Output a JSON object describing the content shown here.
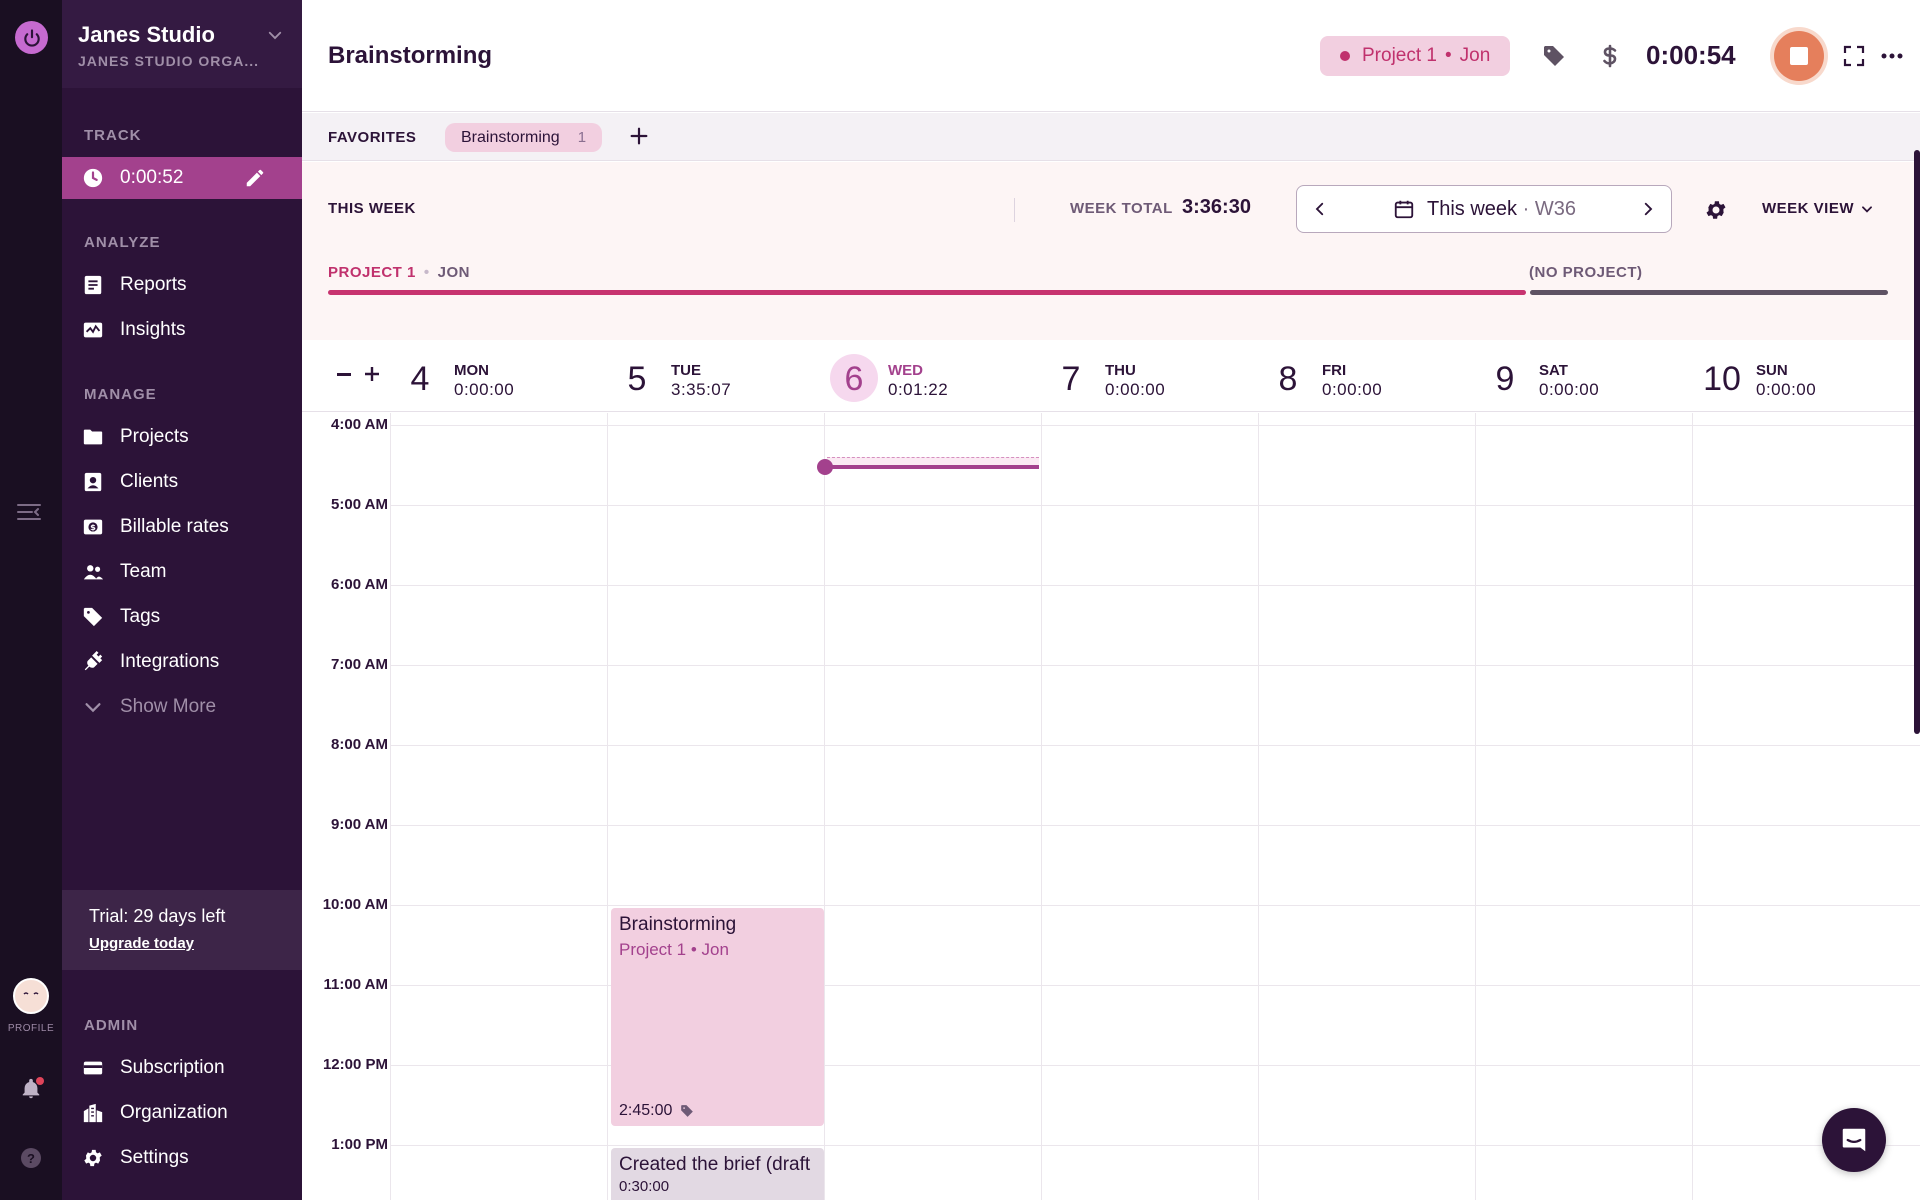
{
  "rail": {
    "profile_label": "PROFILE",
    "help_glyph": "?"
  },
  "workspace": {
    "name": "Janes Studio",
    "org": "JANES STUDIO ORGA..."
  },
  "sidebar": {
    "track_section": "TRACK",
    "running_time": "0:00:52",
    "analyze_section": "ANALYZE",
    "analyze_items": [
      {
        "label": "Reports",
        "icon": "reports-icon"
      },
      {
        "label": "Insights",
        "icon": "insights-icon"
      }
    ],
    "manage_section": "MANAGE",
    "manage_items": [
      {
        "label": "Projects",
        "icon": "folder-icon"
      },
      {
        "label": "Clients",
        "icon": "client-icon"
      },
      {
        "label": "Billable rates",
        "icon": "billable-icon"
      },
      {
        "label": "Team",
        "icon": "team-icon"
      },
      {
        "label": "Tags",
        "icon": "tag-icon"
      },
      {
        "label": "Integrations",
        "icon": "plug-icon"
      },
      {
        "label": "Show More",
        "icon": "chevron-down-icon"
      }
    ],
    "trial_text": "Trial: 29 days left",
    "upgrade_link": "Upgrade today",
    "admin_section": "ADMIN",
    "admin_items": [
      {
        "label": "Subscription",
        "icon": "card-icon"
      },
      {
        "label": "Organization",
        "icon": "building-icon"
      },
      {
        "label": "Settings",
        "icon": "gear-icon"
      }
    ]
  },
  "topbar": {
    "description": "Brainstorming",
    "project": "Project 1",
    "client": "Jon",
    "timer": "0:00:54"
  },
  "favorites": {
    "label": "FAVORITES",
    "chip_label": "Brainstorming",
    "chip_count": "1"
  },
  "week": {
    "label": "THIS WEEK",
    "total_label": "WEEK TOTAL",
    "total": "3:36:30",
    "range_label": "This week",
    "range_sep": "·",
    "week_number": "W36",
    "view_label": "WEEK VIEW",
    "bars": [
      {
        "project": "PROJECT 1",
        "client": "JON",
        "color": "#c7336f"
      },
      {
        "project": "(NO PROJECT)",
        "color": "#5e5263"
      }
    ]
  },
  "days": [
    {
      "num": "4",
      "name": "MON",
      "total": "0:00:00"
    },
    {
      "num": "5",
      "name": "TUE",
      "total": "3:35:07"
    },
    {
      "num": "6",
      "name": "WED",
      "total": "0:01:22",
      "today": true
    },
    {
      "num": "7",
      "name": "THU",
      "total": "0:00:00"
    },
    {
      "num": "8",
      "name": "FRI",
      "total": "0:00:00"
    },
    {
      "num": "9",
      "name": "SAT",
      "total": "0:00:00"
    },
    {
      "num": "10",
      "name": "SUN",
      "total": "0:00:00"
    }
  ],
  "hours": [
    "4:00 AM",
    "5:00 AM",
    "6:00 AM",
    "7:00 AM",
    "8:00 AM",
    "9:00 AM",
    "10:00 AM",
    "11:00 AM",
    "12:00 PM",
    "1:00 PM"
  ],
  "entries": [
    {
      "title": "Brainstorming",
      "project": "Project 1",
      "client": "Jon",
      "duration": "2:45:00",
      "color": "#f2cfe0"
    },
    {
      "title": "Created the brief (draft",
      "duration": "0:30:00",
      "color": "#e2d9e3"
    }
  ],
  "colors": {
    "accent": "#a3418d",
    "sidebar": "#2c1338",
    "project": "#c7336f",
    "stop_button": "#e57f5c"
  }
}
